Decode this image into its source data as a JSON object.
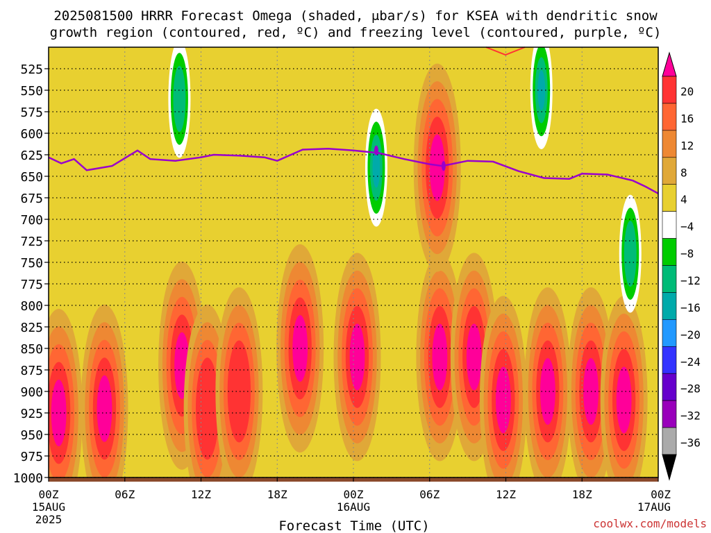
{
  "chart_data": {
    "type": "heatmap",
    "title_line1": "2025081500 HRRR Forecast Omega (shaded, μbar/s) for KSEA with dendritic snow",
    "title_line2": "growth region (contoured, red, ºC) and freezing level (contoured, purple, ºC)",
    "xlabel": "Forecast Time (UTC)",
    "ylabel": "",
    "credit": "coolwx.com/models",
    "x_range_hours": [
      0,
      48
    ],
    "y_range_hpa": [
      500,
      1000
    ],
    "y_ticks": [
      525,
      550,
      575,
      600,
      625,
      650,
      675,
      700,
      725,
      750,
      775,
      800,
      825,
      850,
      875,
      900,
      925,
      950,
      975,
      1000
    ],
    "y_tick_labels": [
      "525",
      "550",
      "575",
      "600",
      "625",
      "650",
      "675",
      "700",
      "725",
      "750",
      "775",
      "800",
      "825",
      "850",
      "875",
      "900",
      "925",
      "950",
      "975",
      "1000"
    ],
    "x_ticks": [
      {
        "hour": 0,
        "label": "00Z",
        "sub1": "15AUG",
        "sub2": "2025"
      },
      {
        "hour": 6,
        "label": "06Z",
        "sub1": "",
        "sub2": ""
      },
      {
        "hour": 12,
        "label": "12Z",
        "sub1": "",
        "sub2": ""
      },
      {
        "hour": 18,
        "label": "18Z",
        "sub1": "",
        "sub2": ""
      },
      {
        "hour": 24,
        "label": "00Z",
        "sub1": "16AUG",
        "sub2": ""
      },
      {
        "hour": 30,
        "label": "06Z",
        "sub1": "",
        "sub2": ""
      },
      {
        "hour": 36,
        "label": "12Z",
        "sub1": "",
        "sub2": ""
      },
      {
        "hour": 42,
        "label": "18Z",
        "sub1": "",
        "sub2": ""
      },
      {
        "hour": 48,
        "label": "00Z",
        "sub1": "17AUG",
        "sub2": ""
      }
    ],
    "grid": true,
    "colorbar": {
      "labels": [
        "20",
        "16",
        "12",
        "8",
        "4",
        "−4",
        "−8",
        "−12",
        "−16",
        "−20",
        "−24",
        "−28",
        "−32",
        "−36"
      ],
      "colors": [
        "#ff0099",
        "#ff3333",
        "#ff6633",
        "#ee8833",
        "#e0a838",
        "#e8d030",
        "#ffffff",
        "#00cc00",
        "#00bb77",
        "#00aaaa",
        "#2299ff",
        "#3333ff",
        "#6600cc",
        "#9900bb",
        "#aaaaaa",
        "#000000"
      ]
    },
    "omega_regions": [
      {
        "h": 0.8,
        "p": 925,
        "peak": 20
      },
      {
        "h": 4.4,
        "p": 920,
        "peak": 20
      },
      {
        "h": 10.5,
        "p": 870,
        "peak": 20
      },
      {
        "h": 12.5,
        "p": 920,
        "peak": 16
      },
      {
        "h": 15,
        "p": 900,
        "peak": 16
      },
      {
        "h": 19.8,
        "p": 850,
        "peak": 20
      },
      {
        "h": 24.3,
        "p": 860,
        "peak": 20
      },
      {
        "h": 30.8,
        "p": 860,
        "peak": 20
      },
      {
        "h": 33.5,
        "p": 860,
        "peak": 20
      },
      {
        "h": 35.8,
        "p": 910,
        "peak": 20
      },
      {
        "h": 39.3,
        "p": 900,
        "peak": 20
      },
      {
        "h": 42.7,
        "p": 900,
        "peak": 20
      },
      {
        "h": 45.3,
        "p": 910,
        "peak": 20
      },
      {
        "h": 30.6,
        "p": 640,
        "peak": 20
      },
      {
        "h": 25.8,
        "p": 640,
        "peak": -12
      },
      {
        "h": 10.3,
        "p": 560,
        "peak": -8
      },
      {
        "h": 38.8,
        "p": 550,
        "peak": -12
      },
      {
        "h": 45.8,
        "p": 740,
        "peak": -8
      }
    ],
    "freezing_level": {
      "hours": [
        0,
        1,
        2,
        3,
        5,
        7,
        8,
        10,
        12,
        13,
        15,
        17,
        18,
        20,
        22,
        24,
        26,
        28,
        30,
        31,
        33,
        35,
        37,
        39,
        41,
        42,
        44,
        46,
        47,
        48
      ],
      "values": [
        628,
        635,
        630,
        643,
        638,
        620,
        630,
        632,
        628,
        625,
        626,
        628,
        632,
        619,
        618,
        620,
        623,
        630,
        636,
        638,
        632,
        633,
        644,
        652,
        653,
        647,
        648,
        655,
        662,
        670
      ]
    },
    "markers": [
      {
        "hour": 25.8,
        "p": 620
      },
      {
        "hour": 31.1,
        "p": 638
      }
    ]
  }
}
